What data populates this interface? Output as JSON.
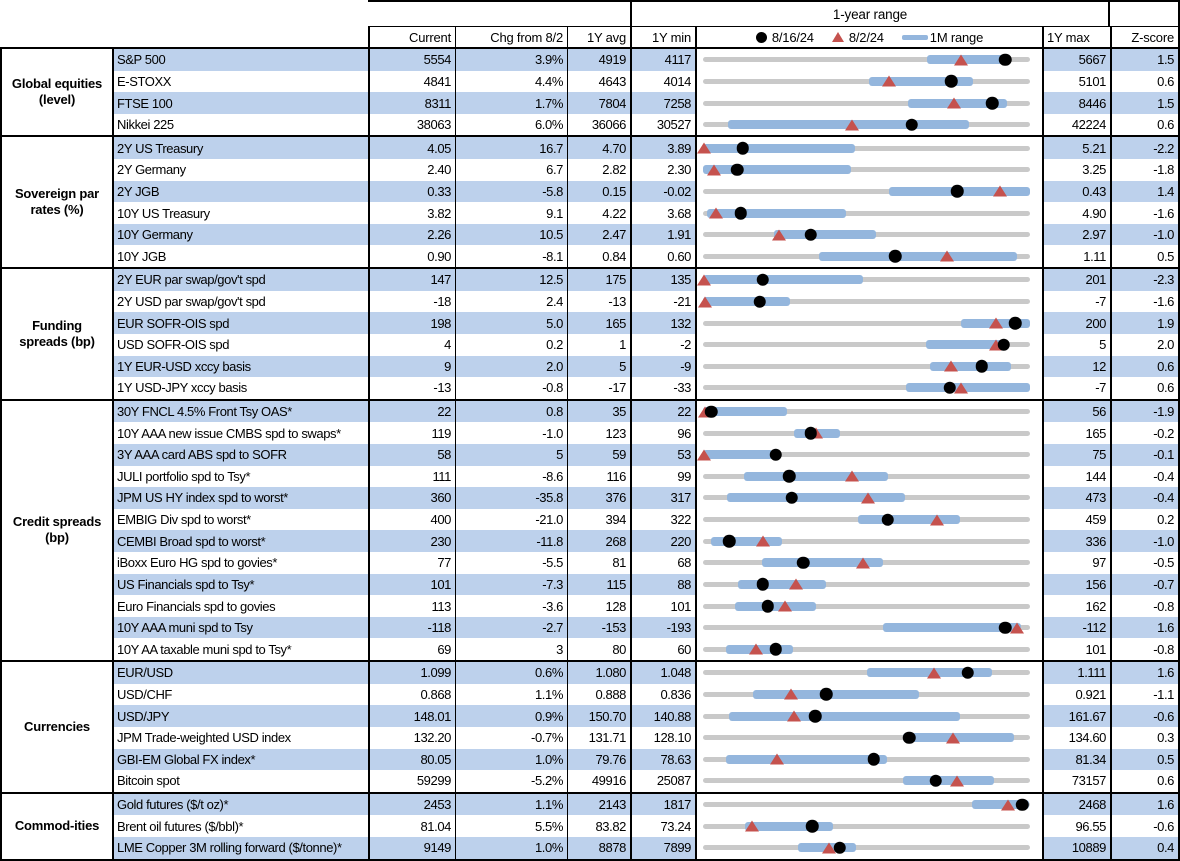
{
  "header": {
    "range_title": "1-year range",
    "columns": {
      "current": "Current",
      "chg": "Chg from 8/2",
      "avg": "1Y avg",
      "min": "1Y min",
      "max": "1Y max",
      "zscore": "Z-score"
    },
    "legend": {
      "dot_label": "8/16/24",
      "triangle_label": "8/2/24",
      "bar_label": "1M range"
    }
  },
  "colors": {
    "stripe": "#bdd1ec",
    "bar": "#94b6dd",
    "track": "#c9c9c9",
    "triangle": "#c5524e",
    "dot": "#000000"
  },
  "chart_data": {
    "type": "table",
    "description": "Market dashboard; each row has a 1-year-range bullet plot. Plot positions (bar endpoints, triangle = 8/2/24 marker, dot = 8/16/24 marker) are percent of the 1Y min-to-max span.",
    "sections": [
      {
        "label": "Global equities (level)",
        "rows": [
          {
            "name": "S&P 500",
            "current": "5554",
            "chg": "3.9%",
            "avg": "4919",
            "min": "4117",
            "max": "5667",
            "z": "1.5",
            "plot": {
              "bar": [
                68.5,
                93.5
              ],
              "tri": 79.0,
              "dot": 92.5
            }
          },
          {
            "name": "E-STOXX",
            "current": "4841",
            "chg": "4.4%",
            "avg": "4643",
            "min": "4014",
            "max": "5101",
            "z": "0.6",
            "plot": {
              "bar": [
                50.9,
                82.5
              ],
              "tri": 57.0,
              "dot": 75.9
            }
          },
          {
            "name": "FTSE 100",
            "current": "8311",
            "chg": "1.7%",
            "avg": "7804",
            "min": "7258",
            "max": "8446",
            "z": "1.5",
            "plot": {
              "bar": [
                62.7,
                93.1
              ],
              "tri": 76.7,
              "dot": 88.4
            }
          },
          {
            "name": "Nikkei 225",
            "current": "38063",
            "chg": "6.0%",
            "avg": "36066",
            "min": "30527",
            "max": "42224",
            "z": "0.6",
            "plot": {
              "bar": [
                7.5,
                81.2
              ],
              "tri": 45.7,
              "dot": 63.9
            }
          }
        ]
      },
      {
        "label": "Sovereign par rates (%)",
        "rows": [
          {
            "name": "2Y US Treasury",
            "current": "4.05",
            "chg": "16.7",
            "avg": "4.70",
            "min": "3.89",
            "max": "5.21",
            "z": "-2.2",
            "plot": {
              "bar": [
                0,
                46.5
              ],
              "tri": 0.3,
              "dot": 12.1
            }
          },
          {
            "name": "2Y Germany",
            "current": "2.40",
            "chg": "6.7",
            "avg": "2.82",
            "min": "2.30",
            "max": "3.25",
            "z": "-1.8",
            "plot": {
              "bar": [
                0,
                45.3
              ],
              "tri": 3.5,
              "dot": 10.5
            }
          },
          {
            "name": "2Y JGB",
            "current": "0.33",
            "chg": "-5.8",
            "avg": "0.15",
            "min": "-0.02",
            "max": "0.43",
            "z": "1.4",
            "plot": {
              "bar": [
                56.8,
                100
              ],
              "tri": 90.7,
              "dot": 77.8
            }
          },
          {
            "name": "10Y US Treasury",
            "current": "3.82",
            "chg": "9.1",
            "avg": "4.22",
            "min": "3.68",
            "max": "4.90",
            "z": "-1.6",
            "plot": {
              "bar": [
                1.3,
                43.6
              ],
              "tri": 4.0,
              "dot": 11.5
            }
          },
          {
            "name": "10Y Germany",
            "current": "2.26",
            "chg": "10.5",
            "avg": "2.47",
            "min": "1.91",
            "max": "2.97",
            "z": "-1.0",
            "plot": {
              "bar": [
                21.6,
                53.0
              ],
              "tri": 23.1,
              "dot": 33.0
            }
          },
          {
            "name": "10Y JGB",
            "current": "0.90",
            "chg": "-8.1",
            "avg": "0.84",
            "min": "0.60",
            "max": "1.11",
            "z": "0.5",
            "plot": {
              "bar": [
                35.5,
                96.0
              ],
              "tri": 74.7,
              "dot": 58.8
            }
          }
        ]
      },
      {
        "label": "Funding spreads (bp)",
        "rows": [
          {
            "name": "2Y EUR par swap/gov't spd",
            "current": "147",
            "chg": "12.5",
            "avg": "175",
            "min": "135",
            "max": "201",
            "z": "-2.3",
            "plot": {
              "bar": [
                0,
                48.8
              ],
              "tri": 0.3,
              "dot": 18.2
            }
          },
          {
            "name": "2Y USD par swap/gov't spd",
            "current": "-18",
            "chg": "2.4",
            "avg": "-13",
            "min": "-21",
            "max": "-7",
            "z": "-1.6",
            "plot": {
              "bar": [
                0,
                26.6
              ],
              "tri": 0.5,
              "dot": 17.3
            }
          },
          {
            "name": "EUR SOFR-OIS spd",
            "current": "198",
            "chg": "5.0",
            "avg": "165",
            "min": "132",
            "max": "200",
            "z": "1.9",
            "plot": {
              "bar": [
                79.0,
                100
              ],
              "tri": 89.7,
              "dot": 95.5
            }
          },
          {
            "name": "USD SOFR-OIS spd",
            "current": "4",
            "chg": "0.2",
            "avg": "1",
            "min": "-2",
            "max": "5",
            "z": "2.0",
            "plot": {
              "bar": [
                68.3,
                93.6
              ],
              "tri": 89.5,
              "dot": 91.9
            }
          },
          {
            "name": "1Y EUR-USD xccy basis",
            "current": "9",
            "chg": "2.0",
            "avg": "5",
            "min": "-9",
            "max": "12",
            "z": "0.6",
            "plot": {
              "bar": [
                69.3,
                94.3
              ],
              "tri": 75.8,
              "dot": 85.2
            }
          },
          {
            "name": "1Y USD-JPY xccy basis",
            "current": "-13",
            "chg": "-0.8",
            "avg": "-17",
            "min": "-33",
            "max": "-7",
            "z": "0.6",
            "plot": {
              "bar": [
                62.0,
                99.9
              ],
              "tri": 78.8,
              "dot": 75.5
            }
          }
        ]
      },
      {
        "label": "Credit spreads (bp)",
        "rows": [
          {
            "name": "30Y FNCL 4.5% Front Tsy OAS*",
            "current": "22",
            "chg": "0.8",
            "avg": "35",
            "min": "22",
            "max": "56",
            "z": "-1.9",
            "plot": {
              "bar": [
                0,
                25.7
              ],
              "tri": 0.5,
              "dot": 2.5
            }
          },
          {
            "name": "10Y AAA new issue CMBS spd to swaps*",
            "current": "119",
            "chg": "-1.0",
            "avg": "123",
            "min": "96",
            "max": "165",
            "z": "-0.2",
            "plot": {
              "bar": [
                27.7,
                41.8
              ],
              "tri": 34.7,
              "dot": 33.0
            }
          },
          {
            "name": "3Y AAA card ABS spd to SOFR",
            "current": "58",
            "chg": "5",
            "avg": "59",
            "min": "53",
            "max": "75",
            "z": "-0.1",
            "plot": {
              "bar": [
                0,
                21.3
              ],
              "tri": 0.3,
              "dot": 22.2
            }
          },
          {
            "name": "JULI portfolio spd to Tsy*",
            "current": "111",
            "chg": "-8.6",
            "avg": "116",
            "min": "99",
            "max": "144",
            "z": "-0.4",
            "plot": {
              "bar": [
                12.6,
                56.6
              ],
              "tri": 45.5,
              "dot": 26.3
            }
          },
          {
            "name": "JPM US HY index spd to worst*",
            "current": "360",
            "chg": "-35.8",
            "avg": "376",
            "min": "317",
            "max": "473",
            "z": "-0.4",
            "plot": {
              "bar": [
                7.3,
                61.7
              ],
              "tri": 50.4,
              "dot": 27.2
            }
          },
          {
            "name": "EMBIG Div spd to worst*",
            "current": "400",
            "chg": "-21.0",
            "avg": "394",
            "min": "322",
            "max": "459",
            "z": "0.2",
            "plot": {
              "bar": [
                47.5,
                78.6
              ],
              "tri": 71.7,
              "dot": 56.5
            }
          },
          {
            "name": "CEMBI Broad spd to worst*",
            "current": "230",
            "chg": "-11.8",
            "avg": "268",
            "min": "220",
            "max": "336",
            "z": "-1.0",
            "plot": {
              "bar": [
                2.4,
                24.2
              ],
              "tri": 18.3,
              "dot": 8.1
            }
          },
          {
            "name": "iBoxx Euro HG spd to govies*",
            "current": "77",
            "chg": "-5.5",
            "avg": "81",
            "min": "68",
            "max": "97",
            "z": "-0.5",
            "plot": {
              "bar": [
                18.1,
                55.2
              ],
              "tri": 49.0,
              "dot": 30.6
            }
          },
          {
            "name": "US Financials spd to Tsy*",
            "current": "101",
            "chg": "-7.3",
            "avg": "115",
            "min": "88",
            "max": "156",
            "z": "-0.7",
            "plot": {
              "bar": [
                10.6,
                37.5
              ],
              "tri": 28.5,
              "dot": 18.3
            }
          },
          {
            "name": "Euro Financials spd to govies",
            "current": "113",
            "chg": "-3.6",
            "avg": "128",
            "min": "101",
            "max": "162",
            "z": "-0.8",
            "plot": {
              "bar": [
                9.7,
                34.5
              ],
              "tri": 25.2,
              "dot": 19.8
            }
          },
          {
            "name": "10Y AAA muni spd to Tsy",
            "current": "-118",
            "chg": "-2.7",
            "avg": "-153",
            "min": "-193",
            "max": "-112",
            "z": "1.6",
            "plot": {
              "bar": [
                54.9,
                97.3
              ],
              "tri": 95.9,
              "dot": 92.4
            }
          },
          {
            "name": "10Y AA taxable muni spd to Tsy*",
            "current": "69",
            "chg": "3",
            "avg": "80",
            "min": "60",
            "max": "101",
            "z": "-0.8",
            "plot": {
              "bar": [
                7.0,
                27.5
              ],
              "tri": 16.2,
              "dot": 22.3
            }
          }
        ]
      },
      {
        "label": "Currencies",
        "rows": [
          {
            "name": "EUR/USD",
            "current": "1.099",
            "chg": "0.6%",
            "avg": "1.080",
            "min": "1.048",
            "max": "1.111",
            "z": "1.6",
            "plot": {
              "bar": [
                50.2,
                88.5
              ],
              "tri": 70.7,
              "dot": 81.0
            }
          },
          {
            "name": "USD/CHF",
            "current": "0.868",
            "chg": "1.1%",
            "avg": "0.888",
            "min": "0.836",
            "max": "0.921",
            "z": "-1.1",
            "plot": {
              "bar": [
                15.2,
                66.1
              ],
              "tri": 27.0,
              "dot": 37.7
            }
          },
          {
            "name": "USD/JPY",
            "current": "148.01",
            "chg": "0.9%",
            "avg": "150.70",
            "min": "140.88",
            "max": "161.67",
            "z": "-0.6",
            "plot": {
              "bar": [
                7.8,
                78.7
              ],
              "tri": 27.7,
              "dot": 34.3
            }
          },
          {
            "name": "JPM Trade-weighted USD index",
            "current": "132.20",
            "chg": "-0.7%",
            "avg": "131.71",
            "min": "128.10",
            "max": "134.60",
            "z": "0.3",
            "plot": {
              "bar": [
                61.3,
                95.2
              ],
              "tri": 76.6,
              "dot": 63.1
            }
          },
          {
            "name": "GBI-EM Global FX index*",
            "current": "80.05",
            "chg": "1.0%",
            "avg": "79.76",
            "min": "78.63",
            "max": "81.34",
            "z": "0.5",
            "plot": {
              "bar": [
                7.0,
                56.4
              ],
              "tri": 22.7,
              "dot": 52.2
            }
          },
          {
            "name": "Bitcoin spot",
            "current": "59299",
            "chg": "-5.2%",
            "avg": "49916",
            "min": "25087",
            "max": "73157",
            "z": "0.6",
            "plot": {
              "bar": [
                61.2,
                89.1
              ],
              "tri": 77.6,
              "dot": 71.2
            }
          }
        ]
      },
      {
        "label": "Commod-ities",
        "rows": [
          {
            "name": "Gold futures ($/t oz)*",
            "current": "2453",
            "chg": "1.1%",
            "avg": "2143",
            "min": "1817",
            "max": "2468",
            "z": "1.6",
            "plot": {
              "bar": [
                82.2,
                99.7
              ],
              "tri": 93.3,
              "dot": 97.7
            }
          },
          {
            "name": "Brent oil futures ($/bbl)*",
            "current": "81.04",
            "chg": "5.5%",
            "avg": "83.82",
            "min": "73.24",
            "max": "96.55",
            "z": "-0.6",
            "plot": {
              "bar": [
                12.9,
                39.9
              ],
              "tri": 15.1,
              "dot": 33.4
            }
          },
          {
            "name": "LME Copper 3M rolling forward ($/tonne)*",
            "current": "9149",
            "chg": "1.0%",
            "avg": "8878",
            "min": "7899",
            "max": "10889",
            "z": "0.4",
            "plot": {
              "bar": [
                29.0,
                46.8
              ],
              "tri": 38.5,
              "dot": 41.8
            }
          }
        ]
      }
    ]
  }
}
